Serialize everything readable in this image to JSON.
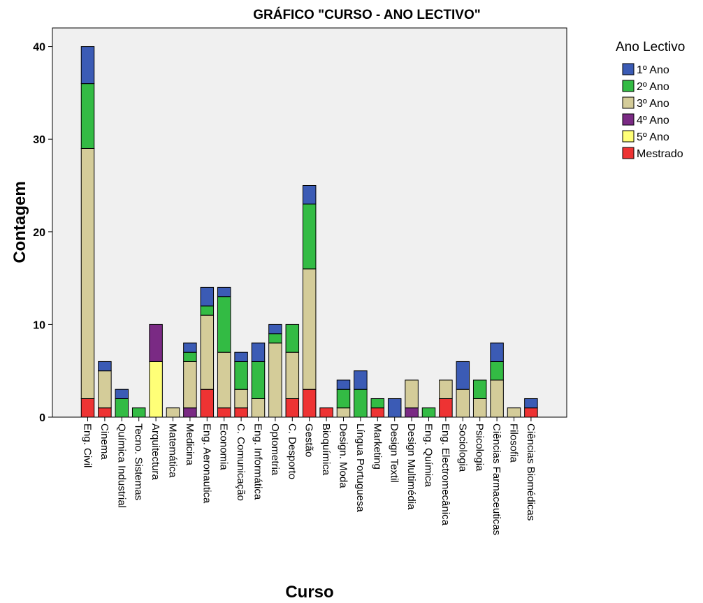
{
  "chart_data": {
    "type": "bar",
    "stacked": true,
    "title": "GRÁFICO \"CURSO - ANO LECTIVO\"",
    "xlabel": "Curso",
    "ylabel": "Contagem",
    "ylim": [
      0,
      42
    ],
    "yticks": [
      0,
      10,
      20,
      30,
      40
    ],
    "grid": false,
    "legend_title": "Ano Lectivo",
    "legend_position": "right",
    "categories": [
      "Eng. Civil",
      "Cinema",
      "Química Industrial",
      "Tecno. Sistemas",
      "Arquitectura",
      "Matemática",
      "Medicina",
      "Eng. Aeronautica",
      "Economia",
      "C. Comunicação",
      "Eng. Informática",
      "Optometria",
      "C. Desporto",
      "Gestão",
      "Bioquímica",
      "Design. Moda",
      "Língua Portuguesa",
      "Marketing",
      "Design Textil",
      "Design Multimédia",
      "Eng. Química",
      "Eng. Electromecânica",
      "Sociologia",
      "Psicologia",
      "Ciências Farmaceuticas",
      "Filosofia",
      "Ciências Biomédicas"
    ],
    "series": [
      {
        "name": "Mestrado",
        "color": "#ee3333",
        "values": [
          2,
          1,
          0,
          0,
          0,
          0,
          0,
          3,
          1,
          1,
          0,
          0,
          2,
          3,
          1,
          0,
          0,
          1,
          0,
          0,
          0,
          2,
          0,
          0,
          0,
          0,
          1
        ]
      },
      {
        "name": "5º Ano",
        "color": "#ffff77",
        "values": [
          0,
          0,
          0,
          0,
          6,
          0,
          0,
          0,
          0,
          0,
          0,
          0,
          0,
          0,
          0,
          0,
          0,
          0,
          0,
          0,
          0,
          0,
          0,
          0,
          0,
          0,
          0
        ]
      },
      {
        "name": "4º Ano",
        "color": "#7a2a84",
        "values": [
          0,
          0,
          0,
          0,
          4,
          0,
          1,
          0,
          0,
          0,
          0,
          0,
          0,
          0,
          0,
          0,
          0,
          0,
          0,
          1,
          0,
          0,
          0,
          0,
          0,
          0,
          0
        ]
      },
      {
        "name": "3º Ano",
        "color": "#d4cc99",
        "values": [
          27,
          4,
          0,
          0,
          0,
          1,
          5,
          8,
          6,
          2,
          2,
          8,
          5,
          13,
          0,
          1,
          0,
          0,
          0,
          3,
          0,
          2,
          3,
          2,
          4,
          1,
          0
        ]
      },
      {
        "name": "2º Ano",
        "color": "#33bb44",
        "values": [
          7,
          0,
          2,
          1,
          0,
          0,
          1,
          1,
          6,
          3,
          4,
          1,
          3,
          7,
          0,
          2,
          3,
          1,
          0,
          0,
          1,
          0,
          0,
          2,
          2,
          0,
          0
        ]
      },
      {
        "name": "1º Ano",
        "color": "#3b5bb5",
        "values": [
          4,
          1,
          1,
          0,
          0,
          0,
          1,
          2,
          1,
          1,
          2,
          1,
          0,
          2,
          0,
          1,
          2,
          0,
          2,
          0,
          0,
          0,
          3,
          0,
          2,
          0,
          1
        ]
      }
    ],
    "legend_order": [
      "1º Ano",
      "2º Ano",
      "3º Ano",
      "4º Ano",
      "5º Ano",
      "Mestrado"
    ],
    "plot_background": "#f0f0f0"
  }
}
